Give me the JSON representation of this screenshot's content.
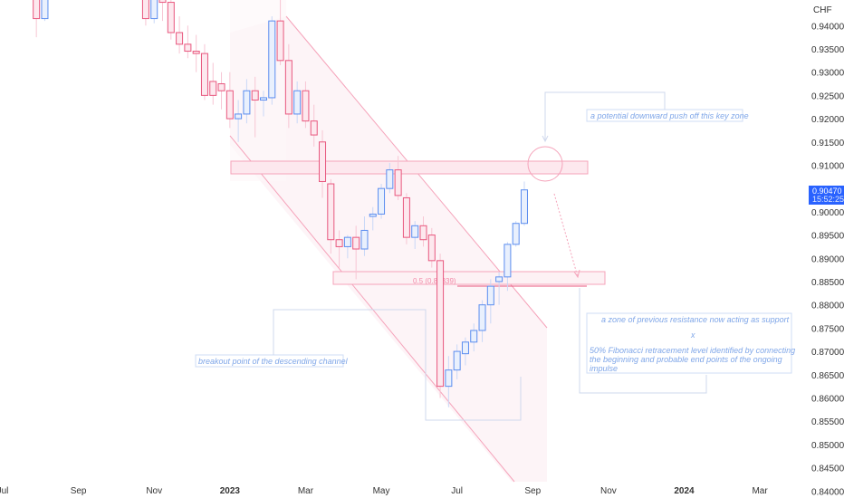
{
  "chart_data": {
    "type": "candlestick",
    "currency_label": "CHF",
    "ylim": [
      0.8385,
      0.9455
    ],
    "y_ticks": [
      "0.94000",
      "0.93500",
      "0.93000",
      "0.92500",
      "0.92000",
      "0.91500",
      "0.91000",
      "0.90500",
      "0.90000",
      "0.89500",
      "0.89000",
      "0.88500",
      "0.88000",
      "0.87500",
      "0.87000",
      "0.86500",
      "0.86000",
      "0.85500",
      "0.85000",
      "0.84500",
      "0.84000"
    ],
    "x_ticks": [
      {
        "label": "Jul",
        "week": 0,
        "bold": false
      },
      {
        "label": "Sep",
        "week": 9,
        "bold": false
      },
      {
        "label": "Nov",
        "week": 18,
        "bold": false
      },
      {
        "label": "2023",
        "week": 27,
        "bold": true
      },
      {
        "label": "Mar",
        "week": 36,
        "bold": false
      },
      {
        "label": "May",
        "week": 45,
        "bold": false
      },
      {
        "label": "Jul",
        "week": 54,
        "bold": false
      },
      {
        "label": "Sep",
        "week": 63,
        "bold": false
      },
      {
        "label": "Nov",
        "week": 72,
        "bold": false
      },
      {
        "label": "2024",
        "week": 81,
        "bold": true
      },
      {
        "label": "Mar",
        "week": 90,
        "bold": false
      }
    ],
    "current_price": "0.90470",
    "countdown": "15:52:25",
    "candles": [
      {
        "week": 4,
        "o": 0.947,
        "h": 0.949,
        "l": 0.9375,
        "c": 0.9415
      },
      {
        "week": 5,
        "o": 0.9415,
        "h": 0.948,
        "l": 0.941,
        "c": 0.947
      },
      {
        "week": 17,
        "o": 0.947,
        "h": 0.9485,
        "l": 0.94,
        "c": 0.9415
      },
      {
        "week": 18,
        "o": 0.9415,
        "h": 0.948,
        "l": 0.9405,
        "c": 0.9475
      },
      {
        "week": 19,
        "o": 0.9475,
        "h": 0.9495,
        "l": 0.941,
        "c": 0.945
      },
      {
        "week": 20,
        "o": 0.945,
        "h": 0.946,
        "l": 0.937,
        "c": 0.9385
      },
      {
        "week": 21,
        "o": 0.9385,
        "h": 0.942,
        "l": 0.934,
        "c": 0.936
      },
      {
        "week": 22,
        "o": 0.936,
        "h": 0.94,
        "l": 0.933,
        "c": 0.9345
      },
      {
        "week": 23,
        "o": 0.9345,
        "h": 0.938,
        "l": 0.93,
        "c": 0.934
      },
      {
        "week": 24,
        "o": 0.934,
        "h": 0.936,
        "l": 0.924,
        "c": 0.925
      },
      {
        "week": 25,
        "o": 0.928,
        "h": 0.932,
        "l": 0.923,
        "c": 0.925
      },
      {
        "week": 26,
        "o": 0.9275,
        "h": 0.93,
        "l": 0.922,
        "c": 0.926
      },
      {
        "week": 27,
        "o": 0.926,
        "h": 0.93,
        "l": 0.918,
        "c": 0.92
      },
      {
        "week": 28,
        "o": 0.92,
        "h": 0.924,
        "l": 0.915,
        "c": 0.921
      },
      {
        "week": 29,
        "o": 0.921,
        "h": 0.9285,
        "l": 0.919,
        "c": 0.926
      },
      {
        "week": 30,
        "o": 0.926,
        "h": 0.929,
        "l": 0.916,
        "c": 0.924
      },
      {
        "week": 31,
        "o": 0.924,
        "h": 0.926,
        "l": 0.9205,
        "c": 0.9245
      },
      {
        "week": 32,
        "o": 0.9245,
        "h": 0.942,
        "l": 0.923,
        "c": 0.941
      },
      {
        "week": 33,
        "o": 0.941,
        "h": 0.946,
        "l": 0.9315,
        "c": 0.9325
      },
      {
        "week": 34,
        "o": 0.9325,
        "h": 0.936,
        "l": 0.918,
        "c": 0.921
      },
      {
        "week": 35,
        "o": 0.921,
        "h": 0.928,
        "l": 0.919,
        "c": 0.926
      },
      {
        "week": 36,
        "o": 0.926,
        "h": 0.928,
        "l": 0.918,
        "c": 0.9195
      },
      {
        "week": 37,
        "o": 0.9195,
        "h": 0.923,
        "l": 0.914,
        "c": 0.9165
      },
      {
        "week": 38,
        "o": 0.915,
        "h": 0.9175,
        "l": 0.903,
        "c": 0.9065
      },
      {
        "week": 39,
        "o": 0.906,
        "h": 0.907,
        "l": 0.891,
        "c": 0.894
      },
      {
        "week": 40,
        "o": 0.894,
        "h": 0.896,
        "l": 0.888,
        "c": 0.8925
      },
      {
        "week": 41,
        "o": 0.8925,
        "h": 0.895,
        "l": 0.89,
        "c": 0.8945
      },
      {
        "week": 42,
        "o": 0.8945,
        "h": 0.897,
        "l": 0.8855,
        "c": 0.892
      },
      {
        "week": 43,
        "o": 0.892,
        "h": 0.899,
        "l": 0.8905,
        "c": 0.896
      },
      {
        "week": 44,
        "o": 0.899,
        "h": 0.901,
        "l": 0.896,
        "c": 0.8995
      },
      {
        "week": 45,
        "o": 0.8995,
        "h": 0.906,
        "l": 0.8985,
        "c": 0.905
      },
      {
        "week": 46,
        "o": 0.905,
        "h": 0.9105,
        "l": 0.904,
        "c": 0.909
      },
      {
        "week": 47,
        "o": 0.909,
        "h": 0.912,
        "l": 0.9025,
        "c": 0.9035
      },
      {
        "week": 48,
        "o": 0.903,
        "h": 0.904,
        "l": 0.893,
        "c": 0.8945
      },
      {
        "week": 49,
        "o": 0.8945,
        "h": 0.898,
        "l": 0.892,
        "c": 0.897
      },
      {
        "week": 50,
        "o": 0.897,
        "h": 0.899,
        "l": 0.8925,
        "c": 0.894
      },
      {
        "week": 51,
        "o": 0.895,
        "h": 0.8965,
        "l": 0.888,
        "c": 0.8895
      },
      {
        "week": 52,
        "o": 0.8895,
        "h": 0.891,
        "l": 0.86,
        "c": 0.8625
      },
      {
        "week": 53,
        "o": 0.8625,
        "h": 0.869,
        "l": 0.858,
        "c": 0.866
      },
      {
        "week": 54,
        "o": 0.866,
        "h": 0.8715,
        "l": 0.864,
        "c": 0.87
      },
      {
        "week": 55,
        "o": 0.8695,
        "h": 0.873,
        "l": 0.867,
        "c": 0.872
      },
      {
        "week": 56,
        "o": 0.872,
        "h": 0.876,
        "l": 0.87,
        "c": 0.8745
      },
      {
        "week": 57,
        "o": 0.8745,
        "h": 0.881,
        "l": 0.872,
        "c": 0.88
      },
      {
        "week": 58,
        "o": 0.88,
        "h": 0.8855,
        "l": 0.876,
        "c": 0.884
      },
      {
        "week": 59,
        "o": 0.885,
        "h": 0.887,
        "l": 0.88,
        "c": 0.886
      },
      {
        "week": 60,
        "o": 0.886,
        "h": 0.8935,
        "l": 0.883,
        "c": 0.893
      },
      {
        "week": 61,
        "o": 0.893,
        "h": 0.898,
        "l": 0.8925,
        "c": 0.8975
      },
      {
        "week": 62,
        "o": 0.8975,
        "h": 0.9065,
        "l": 0.897,
        "c": 0.9047
      }
    ],
    "fib_label": "0.5 (0.88339)",
    "annotations": {
      "potential_push": "a potential downward push off this key zone",
      "resistance_support": "a zone of previous resistance now acting as support",
      "x_mark": "x",
      "fibonacci": [
        "50% Fibonacci retracement level identified by connecting",
        "the beginning and probable end points of the ongoing",
        "impulse"
      ],
      "breakout": "breakout point of the descending channel"
    },
    "colors": {
      "up": "#5b8def",
      "down": "#e8577e",
      "up_fill": "#e9f0fd",
      "down_fill": "#fde8ee",
      "zone": "#f28aa8",
      "annotation": "#7fa6e8",
      "price_label": "#2962ff"
    }
  }
}
